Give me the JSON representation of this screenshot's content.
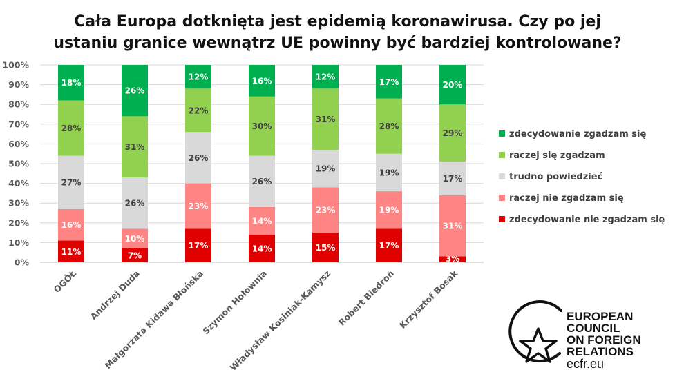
{
  "chart_data": {
    "type": "bar",
    "stacked": true,
    "title_lines": [
      "Cała Europa dotknięta jest epidemią koronawirusa. Czy po jej",
      "ustaniu granice wewnątrz UE powinny być bardziej kontrolowane?"
    ],
    "categories": [
      "OGÓŁ",
      "Andrzej Duda",
      "Małgorzata Kidawa Błońska",
      "Szymon Hołownia",
      "Władysław Kosiniak-Kamysz",
      "Robert Biedroń",
      "Krzysztof Bosak"
    ],
    "series": [
      {
        "name": "zdecydowanie nie zgadzam się",
        "color": "#e00000",
        "label_color": "#ffffff",
        "values": [
          11,
          7,
          17,
          14,
          15,
          17,
          3
        ]
      },
      {
        "name": "raczej nie zgadzam się",
        "color": "#ff8585",
        "label_color": "#ffffff",
        "values": [
          16,
          10,
          23,
          14,
          23,
          19,
          31
        ]
      },
      {
        "name": "trudno powiedzieć",
        "color": "#d9d9d9",
        "label_color": "#404040",
        "values": [
          27,
          26,
          26,
          26,
          19,
          19,
          17
        ]
      },
      {
        "name": "raczej się zgadzam",
        "color": "#92d050",
        "label_color": "#404040",
        "values": [
          28,
          31,
          22,
          30,
          31,
          28,
          29
        ]
      },
      {
        "name": "zdecydowanie zgadzam się",
        "color": "#00b050",
        "label_color": "#ffffff",
        "values": [
          18,
          26,
          12,
          16,
          12,
          17,
          20
        ]
      }
    ],
    "ylim": [
      0,
      100
    ],
    "yticks": [
      "0%",
      "10%",
      "20%",
      "30%",
      "40%",
      "50%",
      "60%",
      "70%",
      "80%",
      "90%",
      "100%"
    ],
    "grid": true,
    "legend_position": "right"
  },
  "logo": {
    "lines": [
      "EUROPEAN",
      "COUNCIL",
      "ON FOREIGN",
      "RELATIONS"
    ],
    "url": "ecfr.eu"
  }
}
